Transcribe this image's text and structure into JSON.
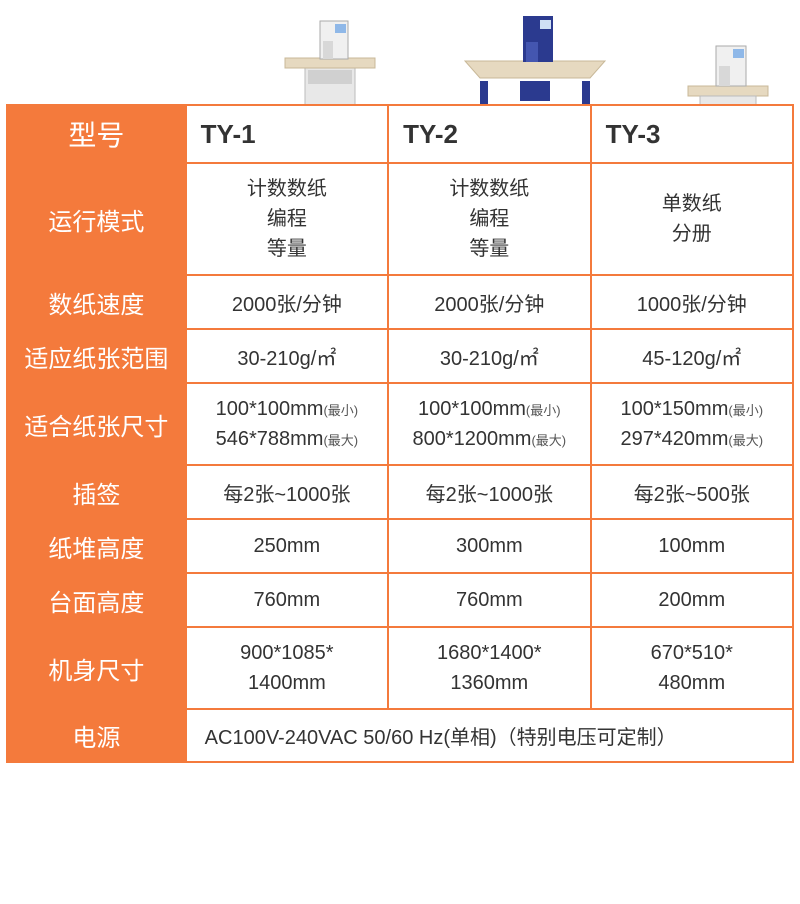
{
  "colors": {
    "accent": "#f47a3c",
    "border": "#f47a3c",
    "text": "#333333",
    "white": "#ffffff"
  },
  "headers": {
    "label": "型号",
    "col1": "TY-1",
    "col2": "TY-2",
    "col3": "TY-3"
  },
  "rows": {
    "mode": {
      "label": "运行模式",
      "c1": "计数数纸\n编程\n等量",
      "c2": "计数数纸\n编程\n等量",
      "c3": "单数纸\n分册"
    },
    "speed": {
      "label": "数纸速度",
      "c1": "2000张/分钟",
      "c2": "2000张/分钟",
      "c3": "1000张/分钟"
    },
    "paperRange": {
      "label": "适应纸张范围",
      "c1": "30-210g/㎡",
      "c2": "30-210g/㎡",
      "c3": "45-120g/㎡"
    },
    "paperSize": {
      "label": "适合纸张尺寸",
      "c1min": "100*100mm",
      "c1minTag": "(最小)",
      "c1max": "546*788mm",
      "c1maxTag": "(最大)",
      "c2min": "100*100mm",
      "c2minTag": "(最小)",
      "c2max": "800*1200mm",
      "c2maxTag": "(最大)",
      "c3min": "100*150mm",
      "c3minTag": "(最小)",
      "c3max": "297*420mm",
      "c3maxTag": "(最大)"
    },
    "tab": {
      "label": "插签",
      "c1": "每2张~1000张",
      "c2": "每2张~1000张",
      "c3": "每2张~500张"
    },
    "stackHeight": {
      "label": "纸堆高度",
      "c1": "250mm",
      "c2": "300mm",
      "c3": "100mm"
    },
    "tableHeight": {
      "label": "台面高度",
      "c1": "760mm",
      "c2": "760mm",
      "c3": "200mm"
    },
    "bodySize": {
      "label": "机身尺寸",
      "c1": "900*1085*\n1400mm",
      "c2": "1680*1400*\n1360mm",
      "c3": "670*510*\n480mm"
    },
    "power": {
      "label": "电源",
      "value": "AC100V-240VAC   50/60 Hz(单相)（特别电压可定制）"
    }
  },
  "rowHeights": {
    "header": 50,
    "mode": 108,
    "speed": 54,
    "paperRange": 54,
    "paperSize": 78,
    "tab": 54,
    "stackHeight": 54,
    "tableHeight": 54,
    "bodySize": 72,
    "power": 46
  }
}
